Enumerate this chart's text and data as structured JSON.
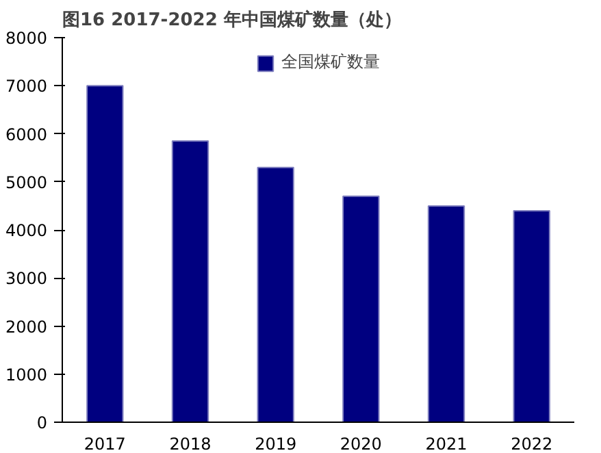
{
  "chart_data": {
    "type": "bar",
    "title": "图16 2017-2022 年中国煤矿数量（处）",
    "categories": [
      "2017",
      "2018",
      "2019",
      "2020",
      "2021",
      "2022"
    ],
    "series": [
      {
        "name": "全国煤矿数量",
        "color": "#000080",
        "values": [
          7000,
          5850,
          5300,
          4700,
          4500,
          4400
        ]
      }
    ],
    "ylim": [
      0,
      8000
    ],
    "yticks": [
      0,
      1000,
      2000,
      3000,
      4000,
      5000,
      6000,
      7000,
      8000
    ],
    "grid": false,
    "legend": "top"
  }
}
